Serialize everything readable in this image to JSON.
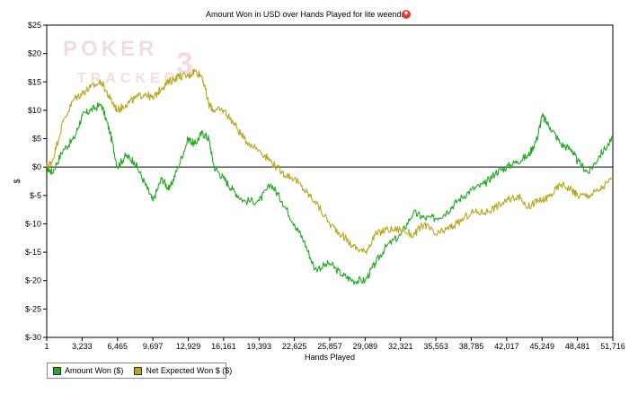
{
  "chart_data": {
    "type": "line",
    "title": "Amount Won in USD over Hands Played for lite weends",
    "xlabel": "Hands Played",
    "ylabel": "$",
    "xlim": [
      1,
      51716
    ],
    "ylim": [
      -30,
      25
    ],
    "x_ticks": [
      1,
      3233,
      6465,
      9697,
      12929,
      16161,
      19393,
      22625,
      25857,
      29089,
      32321,
      35553,
      38785,
      42017,
      45249,
      48481,
      51716
    ],
    "x_tick_labels": [
      "1",
      "3,233",
      "6,465",
      "9,697",
      "12,929",
      "16,161",
      "19,393",
      "22,625",
      "25,857",
      "29,089",
      "32,321",
      "35,553",
      "38,785",
      "42,017",
      "45,249",
      "48,481",
      "51,716"
    ],
    "y_ticks": [
      25,
      20,
      15,
      10,
      5,
      0,
      -5,
      -10,
      -15,
      -20,
      -25,
      -30
    ],
    "y_tick_labels": [
      "$25",
      "$20",
      "$15",
      "$10",
      "$5",
      "$0",
      "$-5",
      "$-10",
      "$-15",
      "$-20",
      "$-25",
      "$-30"
    ],
    "zero_line": 0,
    "legend_position": "bottom-left",
    "series": [
      {
        "name": "Amount Won ($)",
        "color": "#22aa22",
        "x": [
          1,
          500,
          1500,
          2500,
          3233,
          4000,
          5000,
          5800,
          6465,
          7200,
          8000,
          9000,
          9697,
          10500,
          11200,
          12000,
          12929,
          13500,
          14200,
          14800,
          15300,
          16161,
          17000,
          18000,
          19393,
          20500,
          21500,
          22625,
          23500,
          24500,
          25857,
          27000,
          28000,
          29089,
          30000,
          31000,
          32321,
          33500,
          34500,
          35553,
          36500,
          37500,
          38785,
          40000,
          41000,
          42017,
          43000,
          44000,
          44800,
          45249,
          46000,
          47000,
          48000,
          48481,
          49500,
          50500,
          51716
        ],
        "y": [
          0,
          -1,
          3,
          5,
          9,
          10,
          11,
          6,
          0,
          2,
          1,
          -3,
          -6,
          -2,
          -4,
          0,
          5,
          4,
          6,
          5,
          0,
          -2,
          -4,
          -6,
          -6,
          -3,
          -6,
          -10,
          -13,
          -18,
          -17,
          -19,
          -20,
          -20,
          -17,
          -14,
          -12,
          -8,
          -9,
          -9,
          -8,
          -6,
          -4,
          -3,
          -1,
          0,
          1,
          2,
          5,
          9,
          7,
          4,
          3,
          1,
          -1,
          2,
          5
        ]
      },
      {
        "name": "Net Expected Won $ ($)",
        "color": "#b8a81e",
        "x": [
          1,
          500,
          1500,
          2500,
          3233,
          4000,
          5000,
          5800,
          6465,
          7200,
          8000,
          9000,
          9697,
          10500,
          11200,
          12000,
          12929,
          13500,
          14200,
          14800,
          15300,
          16161,
          17000,
          18000,
          19393,
          20500,
          21500,
          22625,
          23500,
          24500,
          25857,
          27000,
          28000,
          29089,
          30000,
          31000,
          32321,
          33500,
          34500,
          35553,
          36500,
          37500,
          38785,
          40000,
          41000,
          42017,
          43000,
          44000,
          44800,
          45249,
          46000,
          47000,
          48000,
          48481,
          49500,
          50500,
          51716
        ],
        "y": [
          0,
          1,
          8,
          12,
          13,
          14,
          15,
          12,
          10,
          11,
          12,
          13,
          12,
          14,
          15,
          16,
          16,
          17,
          16,
          11,
          10,
          10,
          8,
          5,
          3,
          1,
          -1,
          -2,
          -4,
          -6,
          -10,
          -12,
          -14,
          -15,
          -12,
          -11,
          -11,
          -12,
          -10,
          -12,
          -11,
          -10,
          -8,
          -8,
          -7,
          -6,
          -5,
          -7,
          -6,
          -6,
          -5,
          -3,
          -4,
          -5,
          -5,
          -4,
          -2
        ]
      }
    ]
  }
}
